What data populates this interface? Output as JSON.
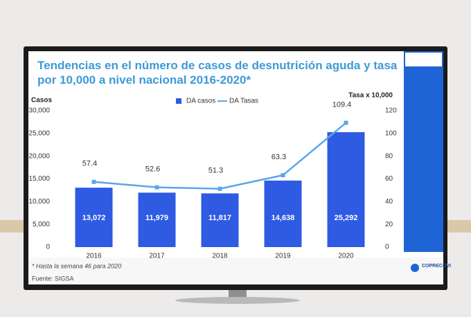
{
  "chart_data": {
    "type": "bar",
    "title": "Tendencias en el número de casos de desnutrición aguda y tasa por 10,000 a nivel nacional 2016-2020*",
    "y_label": "Casos",
    "y2_label": "Tasa  x 10,000",
    "categories": [
      "2016",
      "2017",
      "2018",
      "2019",
      "2020"
    ],
    "series": [
      {
        "name": "DA casos",
        "type": "bar",
        "color": "#2f5be3",
        "values": [
          13072,
          11979,
          11817,
          14638,
          25292
        ],
        "value_labels": [
          "13,072",
          "11,979",
          "11,817",
          "14,638",
          "25,292"
        ]
      },
      {
        "name": "DA Tasas",
        "type": "line",
        "axis": "y2",
        "color": "#5aa6e8",
        "values": [
          57.4,
          52.6,
          51.3,
          63.3,
          109.4
        ]
      }
    ],
    "ylim": [
      0,
      30000
    ],
    "yticks": [
      0,
      {
        "value": 5000,
        "label": "5,000"
      },
      {
        "value": 10000,
        "label": "10,000"
      },
      {
        "value": 15000,
        "label": "15,000"
      },
      {
        "value": 20000,
        "label": "20,000"
      },
      {
        "value": 25000,
        "label": "25,000"
      },
      {
        "value": 30000,
        "label": "30,000"
      }
    ],
    "y2lim": [
      0,
      120
    ],
    "y2ticks": [
      0,
      20,
      40,
      60,
      80,
      100,
      120
    ],
    "legend": "top",
    "notes": [
      "* Hasta la semana 46 para 2020",
      "Fuente: SIGSA"
    ]
  },
  "logo_text": "COPRECOVI"
}
